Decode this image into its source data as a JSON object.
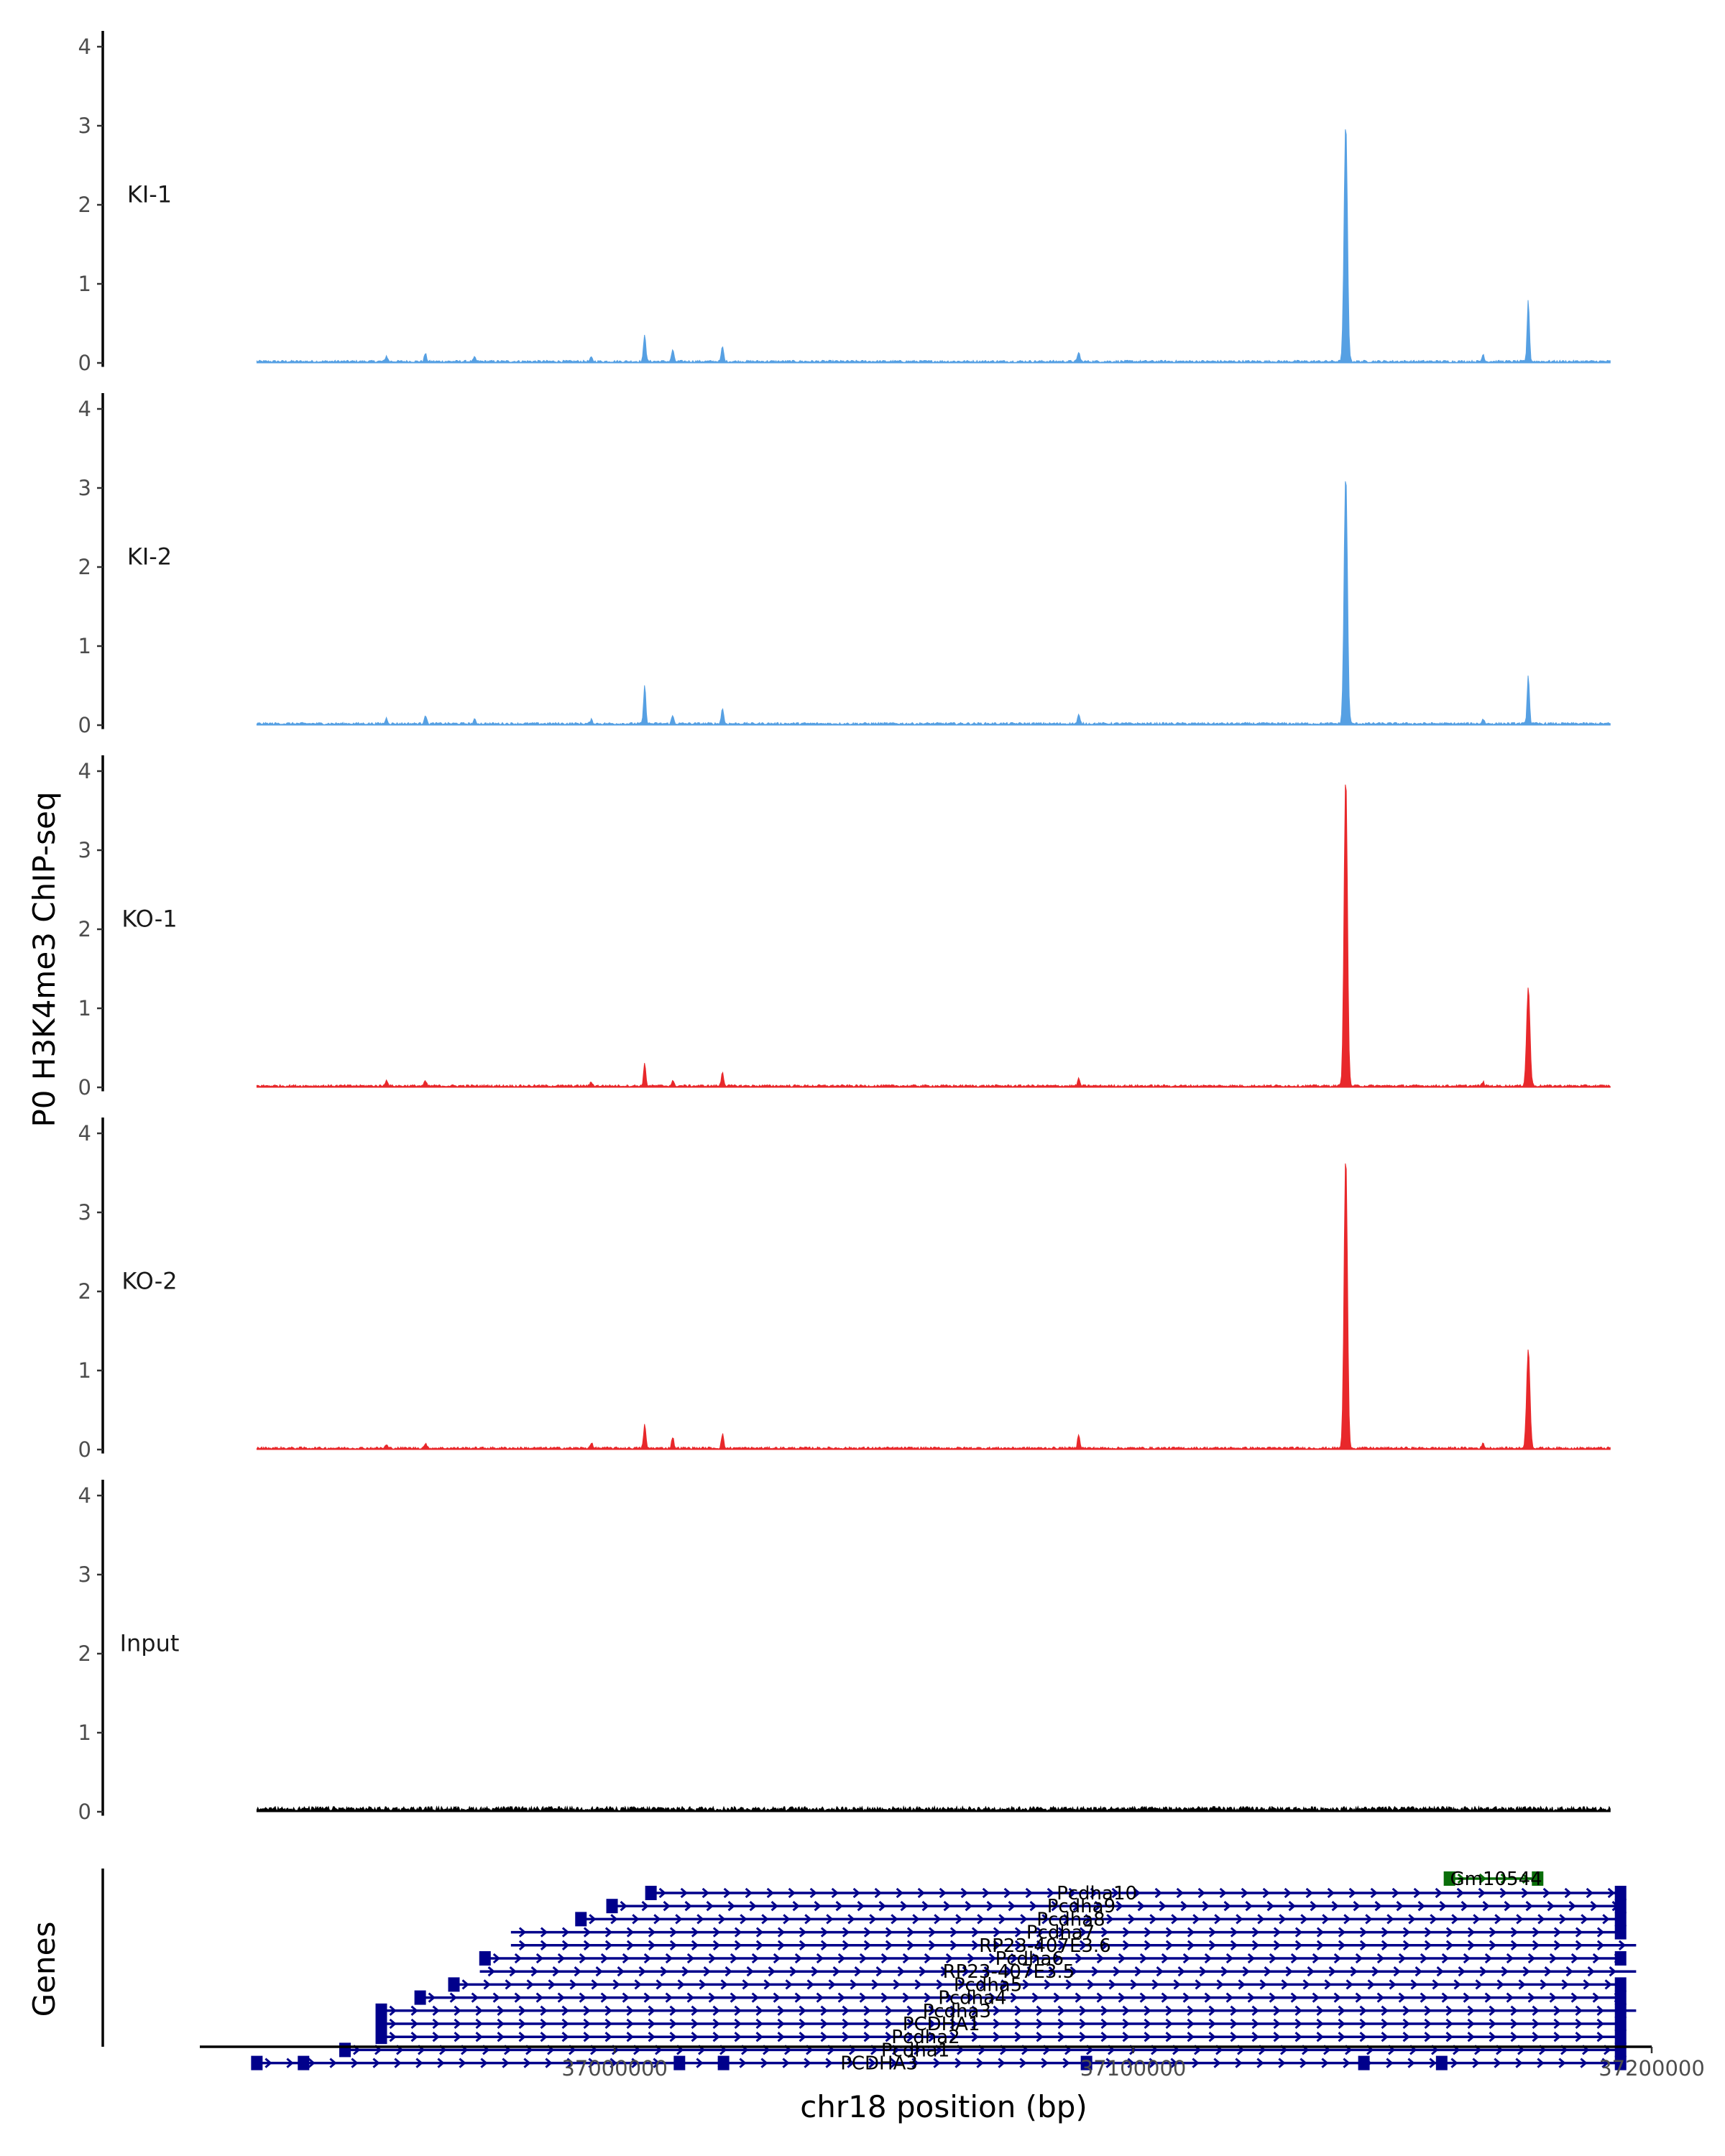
{
  "chart_data": {
    "type": "area",
    "title": "",
    "ylabel": "P0 H3K4me3 ChIP-seq",
    "xlabel": "chr18 position (bp)",
    "xlim": [
      36920000,
      37200000
    ],
    "x_ticks": [
      {
        "value": 37000000,
        "label": "37000000"
      },
      {
        "value": 37100000,
        "label": "37100000"
      },
      {
        "value": 37200000,
        "label": "37200000"
      }
    ],
    "ylim": [
      0,
      4.2
    ],
    "y_ticks": [
      {
        "value": 0,
        "label": "0"
      },
      {
        "value": 1,
        "label": "1"
      },
      {
        "value": 2,
        "label": "2"
      },
      {
        "value": 3,
        "label": "3"
      },
      {
        "value": 4,
        "label": "4"
      }
    ],
    "region": [
      36931000,
      37192000
    ],
    "colors": {
      "KI": "#56a0e3",
      "KO": "#e8282b",
      "Input": "#000000",
      "gene": "#00008b",
      "gm_gene": "#0a6e0a"
    },
    "series": [
      {
        "name": "KI-1",
        "color": "#56a0e3",
        "peaks": [
          [
            37141000,
            3.02
          ],
          [
            37176200,
            0.78
          ],
          [
            37005800,
            0.35
          ],
          [
            37020800,
            0.19
          ],
          [
            37011200,
            0.15
          ],
          [
            37089500,
            0.12
          ],
          [
            37167500,
            0.09
          ],
          [
            36963500,
            0.1
          ],
          [
            36956000,
            0.07
          ],
          [
            36973000,
            0.05
          ],
          [
            36995500,
            0.05
          ]
        ],
        "baseline": 0.02
      },
      {
        "name": "KI-2",
        "color": "#56a0e3",
        "peaks": [
          [
            37141000,
            3.17
          ],
          [
            37176200,
            0.62
          ],
          [
            37005800,
            0.48
          ],
          [
            37020800,
            0.2
          ],
          [
            37011200,
            0.1
          ],
          [
            37089500,
            0.11
          ],
          [
            37167500,
            0.06
          ],
          [
            36963500,
            0.11
          ],
          [
            36956000,
            0.07
          ],
          [
            36973000,
            0.05
          ],
          [
            36995500,
            0.05
          ]
        ],
        "baseline": 0.02
      },
      {
        "name": "KO-1",
        "color": "#e8282b",
        "peaks": [
          [
            37141000,
            3.95
          ],
          [
            37176200,
            1.25
          ],
          [
            37005800,
            0.28
          ],
          [
            37020800,
            0.18
          ],
          [
            37011200,
            0.06
          ],
          [
            37089500,
            0.09
          ],
          [
            37167500,
            0.05
          ],
          [
            36956000,
            0.08
          ],
          [
            36963500,
            0.06
          ],
          [
            36995500,
            0.05
          ]
        ],
        "baseline": 0.02
      },
      {
        "name": "KO-2",
        "color": "#e8282b",
        "peaks": [
          [
            37141000,
            3.72
          ],
          [
            37176200,
            1.25
          ],
          [
            37005800,
            0.3
          ],
          [
            37020800,
            0.18
          ],
          [
            37011200,
            0.14
          ],
          [
            37089500,
            0.18
          ],
          [
            37167500,
            0.06
          ],
          [
            36956000,
            0.04
          ],
          [
            36963500,
            0.06
          ],
          [
            36995500,
            0.07
          ]
        ],
        "baseline": 0.02
      },
      {
        "name": "Input",
        "color": "#000000",
        "peaks": [],
        "baseline": 0.03
      }
    ],
    "genes_track_label": "Genes",
    "genes": [
      {
        "name": "Pcdha10",
        "row": 1,
        "start": 37007000,
        "end": 37195000,
        "exons": [
          37007000,
          37194000
        ],
        "label_pos": 37093000
      },
      {
        "name": "Pcdha9",
        "row": 2,
        "start": 36999500,
        "end": 37195000,
        "exons": [
          36999500,
          37194000
        ],
        "label_pos": 37090000
      },
      {
        "name": "Pcdha8",
        "row": 3,
        "start": 36993500,
        "end": 37195000,
        "exons": [
          36993500,
          37194000
        ],
        "label_pos": 37088000
      },
      {
        "name": "Pcdha7",
        "row": 4,
        "start": 36980000,
        "end": 37195000,
        "exons": [
          37194000
        ],
        "label_pos": 37086000
      },
      {
        "name": "RP23-407E3.6",
        "row": 5,
        "start": 36980000,
        "end": 37197000,
        "exons": [],
        "label_pos": 37083000
      },
      {
        "name": "Pcdha6",
        "row": 6,
        "start": 36975000,
        "end": 37195000,
        "exons": [
          36975000,
          37194000
        ],
        "label_pos": 37080000
      },
      {
        "name": "RP23-407E3.5",
        "row": 7,
        "start": 36974000,
        "end": 37197000,
        "exons": [],
        "label_pos": 37076000
      },
      {
        "name": "Pcdha5",
        "row": 8,
        "start": 36969000,
        "end": 37195000,
        "exons": [
          36969000,
          37194000
        ],
        "label_pos": 37072000
      },
      {
        "name": "Pcdha4",
        "row": 9,
        "start": 36962500,
        "end": 37195000,
        "exons": [
          36962500,
          37194000
        ],
        "label_pos": 37069000
      },
      {
        "name": "Pcdha3",
        "row": 10,
        "start": 36955000,
        "end": 37197000,
        "exons": [
          36955000,
          37194000
        ],
        "label_pos": 37066000
      },
      {
        "name": "PCDHA1",
        "row": 11,
        "start": 36955000,
        "end": 37195000,
        "exons": [
          36955000,
          37194000
        ],
        "label_pos": 37063000
      },
      {
        "name": "Pcdha2",
        "row": 12,
        "start": 36955000,
        "end": 37195000,
        "exons": [
          36955000,
          37194000
        ],
        "label_pos": 37060000
      },
      {
        "name": "Pcdha1",
        "row": 13,
        "start": 36948000,
        "end": 37195000,
        "exons": [
          36948000,
          37194000
        ],
        "label_pos": 37058000
      },
      {
        "name": "PCDHA3",
        "row": 14,
        "start": 36931000,
        "end": 37195000,
        "exons": [
          36931000,
          36940000,
          37012500,
          37021000,
          37091000,
          37144500,
          37159500,
          37194000
        ],
        "label_pos": 37051000
      },
      {
        "name": "Gm10544",
        "row": 0,
        "start": 37161000,
        "end": 37178500,
        "exons": [
          37161000,
          37178000
        ],
        "label_pos": 37170000,
        "color": "#0a6e0a"
      }
    ]
  }
}
